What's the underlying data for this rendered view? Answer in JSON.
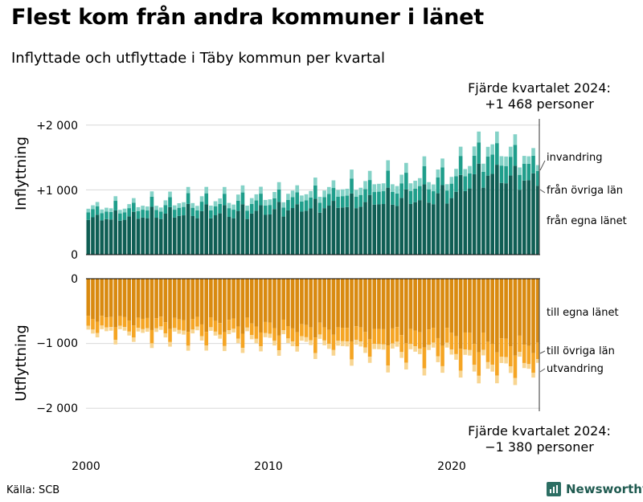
{
  "title": "Flest kom från andra kommuner i länet",
  "subtitle": "Inflyttade och utflyttade i Täby kommun per kvartal",
  "source": "Källa: SCB",
  "brand": {
    "name": "Newsworthy"
  },
  "colors": {
    "in_local": "#0f5e54",
    "in_other": "#1f9e8b",
    "in_immig": "#84d2c7",
    "out_local": "#d98a10",
    "out_other": "#f5a524",
    "out_emig": "#f8d591"
  },
  "chart_data": {
    "type": "bar",
    "stacked": true,
    "x_start": "2000 Q1",
    "x_end": "2024 Q4",
    "x_ticks": [
      "2000",
      "2010",
      "2020"
    ],
    "top_panel": {
      "ylabel": "Inflyttning",
      "ylim": [
        0,
        2100
      ],
      "yticks": [
        "+2 000",
        "+1 000",
        "0"
      ],
      "series_labels": [
        "från egna länet",
        "från övriga län",
        "invandring"
      ],
      "anchors": {
        "x": [
          2000.0,
          2002.0,
          2004.0,
          2006.0,
          2008.0,
          2010.0,
          2012.0,
          2014.0,
          2016.0,
          2018.0,
          2020.0,
          2021.0,
          2022.0,
          2023.0,
          2024.75
        ],
        "from_own_county": [
          560,
          580,
          620,
          650,
          640,
          680,
          720,
          770,
          830,
          870,
          920,
          1150,
          1250,
          1200,
          1130
        ],
        "from_other_counties": [
          120,
          125,
          130,
          140,
          150,
          160,
          170,
          185,
          210,
          225,
          235,
          260,
          300,
          290,
          240
        ],
        "immigration": [
          60,
          60,
          70,
          80,
          90,
          95,
          100,
          110,
          130,
          130,
          110,
          130,
          155,
          160,
          98
        ]
      }
    },
    "bottom_panel": {
      "ylabel": "Utflyttning",
      "ylim": [
        -2100,
        0
      ],
      "yticks": [
        "0",
        "−1 000",
        "−2 000"
      ],
      "series_labels": [
        "till egna länet",
        "till övriga län",
        "utvandring"
      ],
      "anchors": {
        "x": [
          2000.0,
          2002.0,
          2004.0,
          2006.0,
          2008.0,
          2010.0,
          2012.0,
          2014.0,
          2016.0,
          2018.0,
          2020.0,
          2021.0,
          2022.0,
          2023.0,
          2024.75
        ],
        "to_own_county": [
          600,
          640,
          660,
          680,
          700,
          740,
          760,
          800,
          830,
          860,
          880,
          940,
          1000,
          1010,
          1050
        ],
        "to_other_counties": [
          160,
          165,
          170,
          175,
          180,
          190,
          200,
          220,
          250,
          260,
          270,
          300,
          320,
          310,
          270
        ],
        "emigration": [
          60,
          60,
          60,
          65,
          65,
          70,
          75,
          80,
          85,
          90,
          85,
          95,
          105,
          105,
          60
        ]
      }
    },
    "annotations": [
      {
        "line1": "Fjärde kvartalet 2024:",
        "line2": "+1 468 personer",
        "at": "2024 Q4",
        "panel": "top"
      },
      {
        "line1": "Fjärde kvartalet 2024:",
        "line2": "−1 380 personer",
        "at": "2024 Q4",
        "panel": "bottom"
      }
    ]
  }
}
